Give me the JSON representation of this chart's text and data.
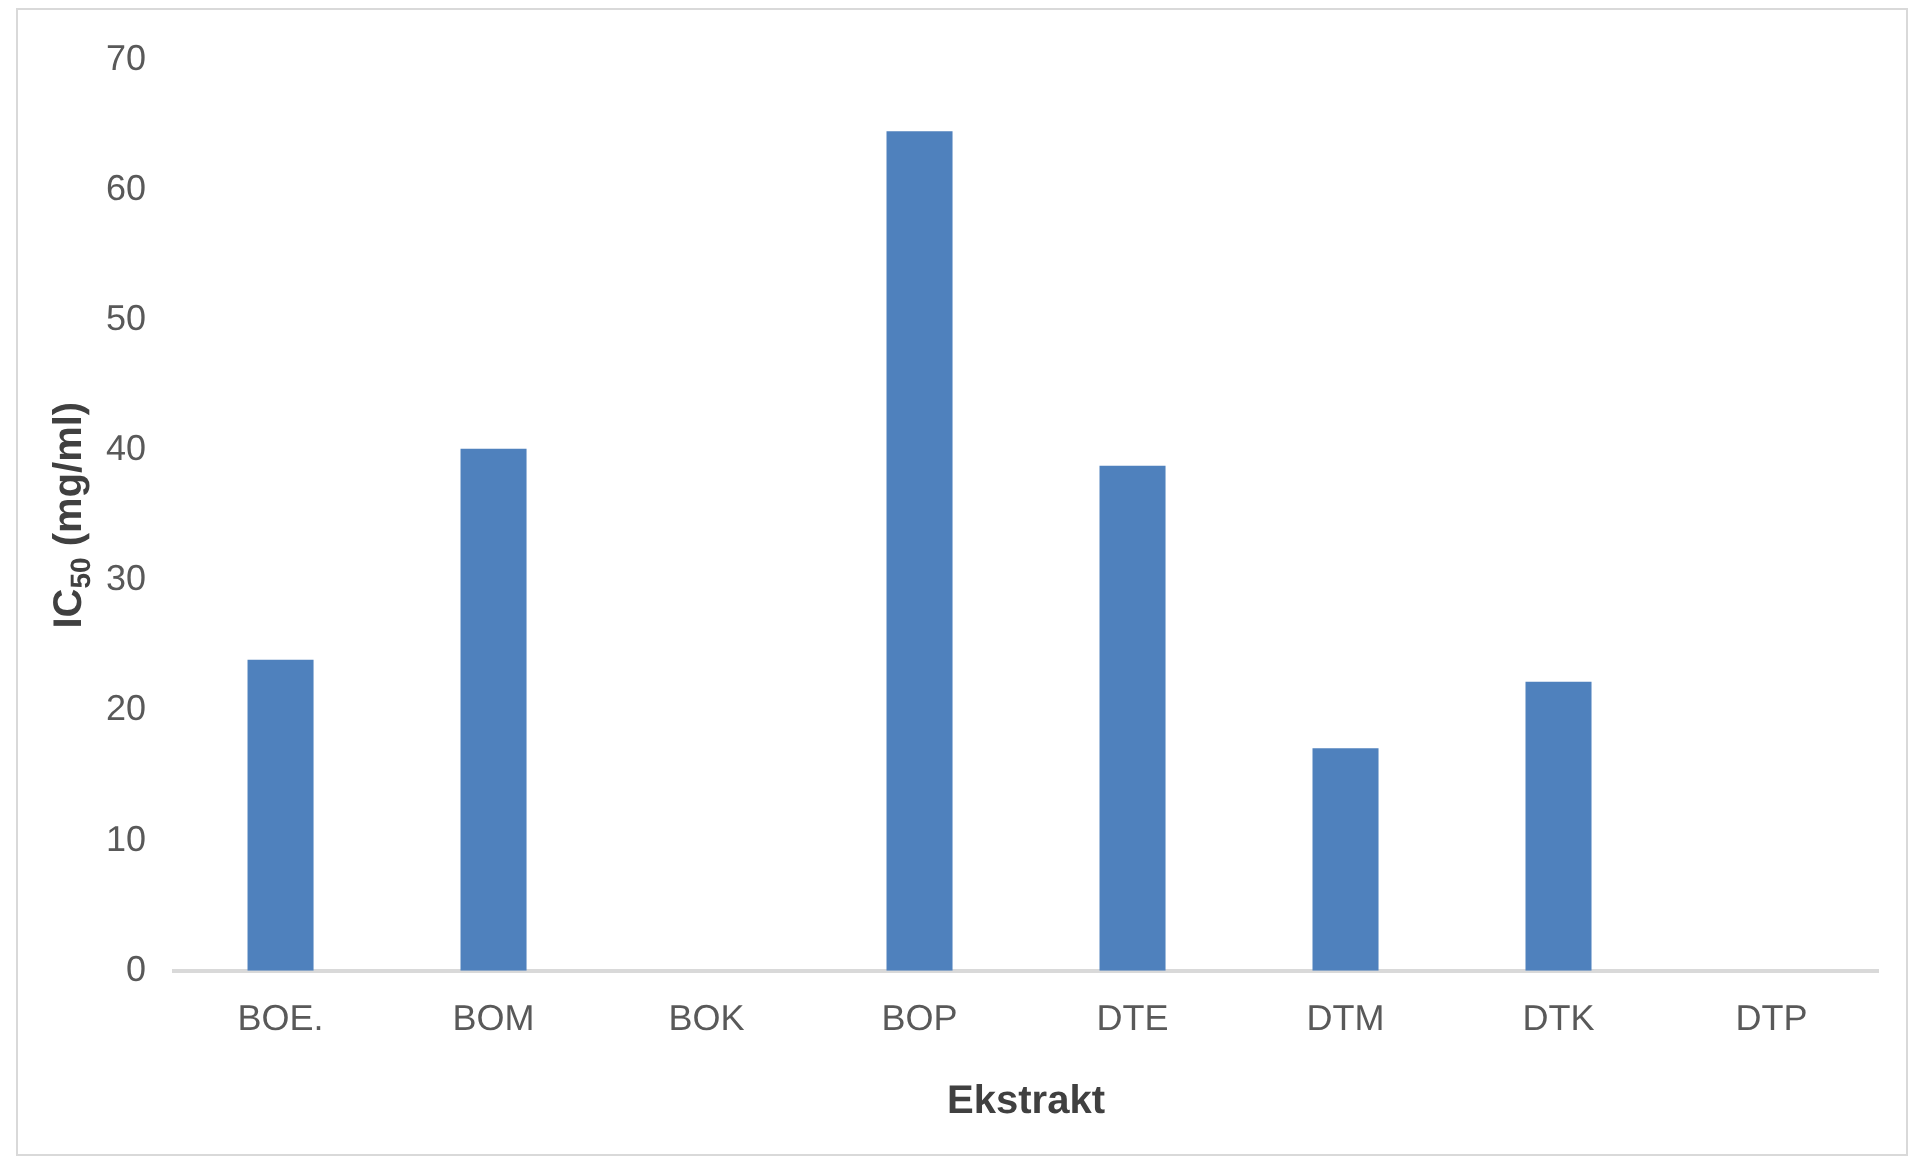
{
  "chart_data": {
    "type": "bar",
    "xlabel": "Ekstrakt",
    "ylabel": "IC$_{50}$ (mg/ml)",
    "categories": [
      "BOE.",
      "BOM",
      "BOK",
      "BOP",
      "DTE",
      "DTM",
      "DTK",
      "DTP"
    ],
    "values": [
      23.9,
      40.1,
      null,
      64.5,
      38.8,
      17.1,
      22.2,
      null
    ],
    "color": "#4f81bd",
    "ylim": [
      0,
      70
    ],
    "yticks": [
      0,
      10,
      20,
      30,
      40,
      50,
      60,
      70
    ],
    "grid": false,
    "legend": false
  }
}
